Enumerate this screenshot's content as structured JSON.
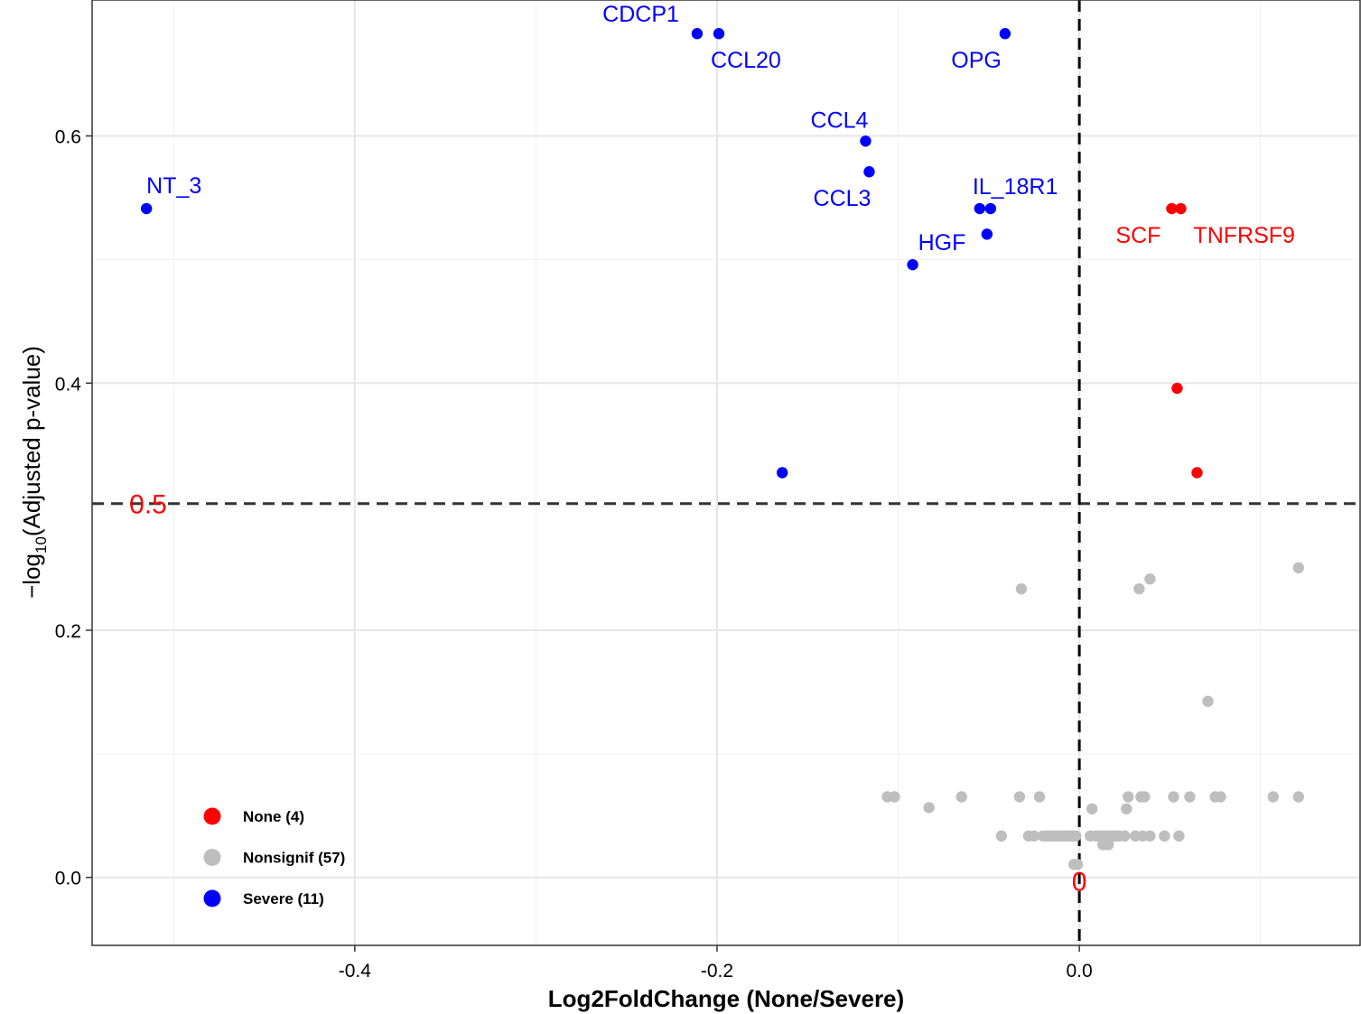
{
  "chart_data": {
    "type": "scatter",
    "xlabel": "Log2FoldChange (None/Severe)",
    "ylabel": {
      "prefix": "−log",
      "sub": "10",
      "suffix": "(Adjusted p-value)"
    },
    "xlim": [
      -0.545,
      0.155
    ],
    "ylim": [
      -0.055,
      0.71
    ],
    "x_ticks": [
      -0.4,
      -0.2,
      0.0
    ],
    "x_tick_labels": [
      "-0.4",
      "-0.2",
      "0.0"
    ],
    "y_ticks": [
      0.0,
      0.2,
      0.4,
      0.6
    ],
    "y_tick_labels": [
      "0.0",
      "0.2",
      "0.4",
      "0.6"
    ],
    "y_minor_breaks": [
      0.1,
      0.3,
      0.5
    ],
    "x_minor_breaks": [
      -0.5,
      -0.3,
      -0.1,
      0.1
    ],
    "grid": true,
    "reference_lines": [
      {
        "axis": "y",
        "value": 0.3025,
        "label": "0.5",
        "color": "#ff0000"
      },
      {
        "axis": "x",
        "value": 0.0,
        "label": "0",
        "color": "#ff0000"
      }
    ],
    "legend": {
      "placement": "bottom-left",
      "inside": true
    },
    "series": [
      {
        "name": "None (4)",
        "color": "#ff0000",
        "points": [
          {
            "x": 0.051,
            "y": 0.5412,
            "label": "SCF"
          },
          {
            "x": 0.056,
            "y": 0.5412,
            "label": "TNFRSF9"
          },
          {
            "x": 0.054,
            "y": 0.3958
          },
          {
            "x": 0.065,
            "y": 0.3275
          }
        ]
      },
      {
        "name": "Nonsignif (57)",
        "color": "#bebebe",
        "points": [
          {
            "x": -0.032,
            "y": 0.2335
          },
          {
            "x": 0.033,
            "y": 0.2335
          },
          {
            "x": 0.039,
            "y": 0.2415
          },
          {
            "x": 0.121,
            "y": 0.2505
          },
          {
            "x": 0.071,
            "y": 0.1425
          },
          {
            "x": -0.106,
            "y": 0.0652
          },
          {
            "x": -0.102,
            "y": 0.0652
          },
          {
            "x": -0.065,
            "y": 0.0652
          },
          {
            "x": -0.033,
            "y": 0.0652
          },
          {
            "x": -0.022,
            "y": 0.0652
          },
          {
            "x": 0.027,
            "y": 0.0652
          },
          {
            "x": 0.034,
            "y": 0.0652
          },
          {
            "x": 0.036,
            "y": 0.0652
          },
          {
            "x": 0.052,
            "y": 0.0652
          },
          {
            "x": 0.061,
            "y": 0.0652
          },
          {
            "x": 0.075,
            "y": 0.0652
          },
          {
            "x": 0.078,
            "y": 0.0652
          },
          {
            "x": 0.107,
            "y": 0.0652
          },
          {
            "x": 0.121,
            "y": 0.0652
          },
          {
            "x": -0.083,
            "y": 0.0565
          },
          {
            "x": 0.007,
            "y": 0.0555
          },
          {
            "x": 0.026,
            "y": 0.0555
          },
          {
            "x": -0.043,
            "y": 0.0335
          },
          {
            "x": -0.028,
            "y": 0.0335
          },
          {
            "x": -0.025,
            "y": 0.0335
          },
          {
            "x": -0.02,
            "y": 0.0335
          },
          {
            "x": -0.018,
            "y": 0.0335
          },
          {
            "x": -0.016,
            "y": 0.0335
          },
          {
            "x": -0.014,
            "y": 0.0335
          },
          {
            "x": -0.012,
            "y": 0.0335
          },
          {
            "x": -0.01,
            "y": 0.0335
          },
          {
            "x": -0.008,
            "y": 0.0335
          },
          {
            "x": -0.006,
            "y": 0.0335
          },
          {
            "x": -0.004,
            "y": 0.0335
          },
          {
            "x": -0.002,
            "y": 0.0335
          },
          {
            "x": 0.006,
            "y": 0.0335
          },
          {
            "x": 0.009,
            "y": 0.0335
          },
          {
            "x": 0.012,
            "y": 0.0335
          },
          {
            "x": 0.014,
            "y": 0.0335
          },
          {
            "x": 0.016,
            "y": 0.0335
          },
          {
            "x": 0.018,
            "y": 0.0335
          },
          {
            "x": 0.02,
            "y": 0.0335
          },
          {
            "x": 0.022,
            "y": 0.0335
          },
          {
            "x": 0.025,
            "y": 0.0335
          },
          {
            "x": 0.031,
            "y": 0.0335
          },
          {
            "x": 0.035,
            "y": 0.0335
          },
          {
            "x": 0.039,
            "y": 0.0335
          },
          {
            "x": 0.047,
            "y": 0.0335
          },
          {
            "x": 0.055,
            "y": 0.0335
          },
          {
            "x": 0.013,
            "y": 0.0265
          },
          {
            "x": 0.016,
            "y": 0.0265
          },
          {
            "x": -0.003,
            "y": 0.0105
          },
          {
            "x": -0.001,
            "y": 0.0105
          },
          {
            "x": -0.007,
            "y": 0.0335
          },
          {
            "x": 0.01,
            "y": 0.0335
          },
          {
            "x": -0.013,
            "y": 0.0335
          },
          {
            "x": 0.019,
            "y": 0.0335
          }
        ]
      },
      {
        "name": "Severe (11)",
        "color": "#0000ff",
        "points": [
          {
            "x": -0.211,
            "y": 0.6828,
            "label": "CDCP1"
          },
          {
            "x": -0.199,
            "y": 0.6828,
            "label": "CCL20"
          },
          {
            "x": -0.041,
            "y": 0.6828,
            "label": "OPG"
          },
          {
            "x": -0.118,
            "y": 0.5958,
            "label": "CCL4"
          },
          {
            "x": -0.116,
            "y": 0.571,
            "label": "CCL3"
          },
          {
            "x": -0.055,
            "y": 0.5412
          },
          {
            "x": -0.049,
            "y": 0.5412,
            "label": "IL_18R1"
          },
          {
            "x": -0.051,
            "y": 0.5205
          },
          {
            "x": -0.092,
            "y": 0.4958,
            "label": "HGF"
          },
          {
            "x": -0.515,
            "y": 0.5412,
            "label": "NT_3"
          },
          {
            "x": -0.164,
            "y": 0.3275
          }
        ]
      }
    ]
  }
}
